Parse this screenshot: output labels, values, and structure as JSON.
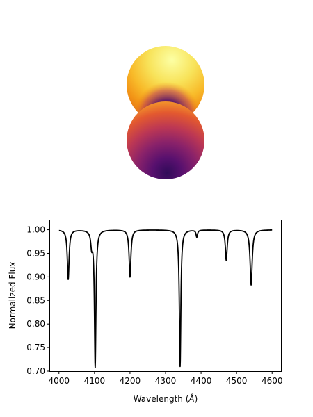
{
  "stars": {
    "primary": {
      "colormap": "inferno",
      "bright_color": "#fcffa4",
      "dark_color": "#2a0a4f"
    },
    "secondary": {
      "colormap": "inferno",
      "bright_color": "#f6a02a",
      "dark_color": "#420a68"
    }
  },
  "chart_data": {
    "type": "line",
    "title": "",
    "xlabel": "Wavelength (",
    "xlabel_unit": "Å",
    "xlabel_close": ")",
    "ylabel": "Normalized Flux",
    "xlim": [
      3975,
      4625
    ],
    "ylim": [
      0.7,
      1.02
    ],
    "xticks": [
      4000,
      4100,
      4200,
      4300,
      4400,
      4500,
      4600
    ],
    "yticks": [
      0.7,
      0.75,
      0.8,
      0.85,
      0.9,
      0.95,
      1.0
    ],
    "xtick_labels": [
      "4000",
      "4100",
      "4200",
      "4300",
      "4400",
      "4500",
      "4600"
    ],
    "ytick_labels": [
      "0.70",
      "0.75",
      "0.80",
      "0.85",
      "0.90",
      "0.95",
      "1.00"
    ],
    "x_range": [
      4000,
      4600
    ],
    "continuum": 1.0,
    "line_color": "#000000",
    "absorption_lines": [
      {
        "center": 4026,
        "depth": 0.105
      },
      {
        "center": 4092,
        "depth": 0.03
      },
      {
        "center": 4102,
        "depth": 0.29
      },
      {
        "center": 4200,
        "depth": 0.1
      },
      {
        "center": 4341,
        "depth": 0.29
      },
      {
        "center": 4388,
        "depth": 0.015
      },
      {
        "center": 4471,
        "depth": 0.065
      },
      {
        "center": 4541,
        "depth": 0.117
      }
    ]
  }
}
